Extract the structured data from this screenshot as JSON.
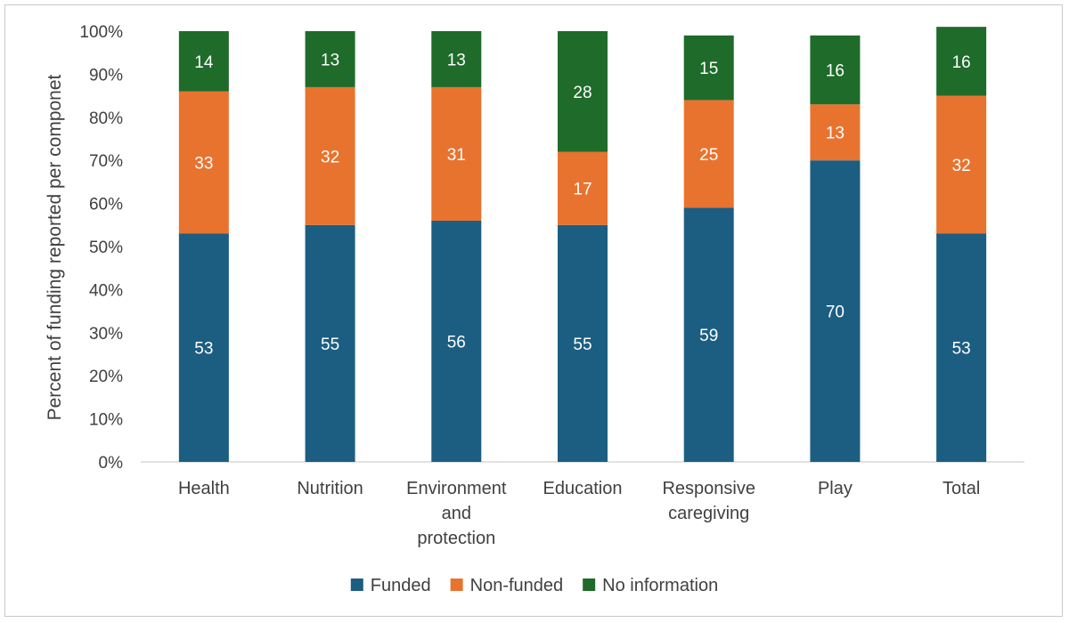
{
  "chart_data": {
    "type": "bar",
    "stacked": true,
    "ylabel": "Percent of funding reported per componet",
    "ylim": [
      0,
      100
    ],
    "yticks": [
      "0%",
      "10%",
      "20%",
      "30%",
      "40%",
      "50%",
      "60%",
      "70%",
      "80%",
      "90%",
      "100%"
    ],
    "categories": [
      [
        "Health"
      ],
      [
        "Nutrition"
      ],
      [
        "Environment",
        "and",
        "protection"
      ],
      [
        "Education"
      ],
      [
        "Responsive",
        "caregiving"
      ],
      [
        "Play"
      ],
      [
        "Total"
      ]
    ],
    "series": [
      {
        "name": "Funded",
        "color": "#1b5e82",
        "values": [
          53,
          55,
          56,
          55,
          59,
          70,
          53
        ]
      },
      {
        "name": "Non-funded",
        "color": "#e8732f",
        "values": [
          33,
          32,
          31,
          17,
          25,
          13,
          32
        ]
      },
      {
        "name": "No information",
        "color": "#1e6b2a",
        "values": [
          14,
          13,
          13,
          28,
          15,
          16,
          16
        ]
      }
    ],
    "grid": false,
    "legend": "bottom"
  }
}
